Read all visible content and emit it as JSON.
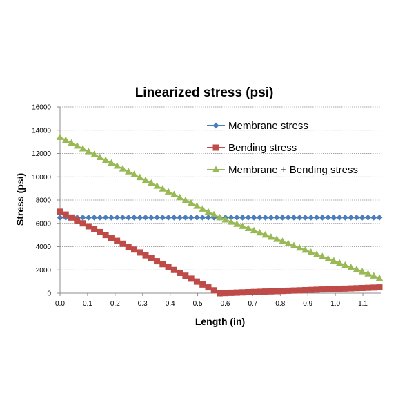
{
  "chart_data": {
    "type": "line",
    "title": "Linearized stress (psi)",
    "xlabel": "Length (in)",
    "ylabel": "Stress (psi)",
    "xlim": [
      0,
      1.165
    ],
    "ylim": [
      0,
      16000
    ],
    "x_ticks": [
      "0.0",
      "0.1",
      "0.2",
      "0.3",
      "0.4",
      "0.5",
      "0.6",
      "0.7",
      "0.8",
      "0.9",
      "1.0",
      "1.1"
    ],
    "y_ticks": [
      "0",
      "2000",
      "4000",
      "6000",
      "8000",
      "10000",
      "12000",
      "14000",
      "16000"
    ],
    "grid": "horizontal",
    "legend_position": "top-right (inside plot)",
    "series": [
      {
        "name": "Membrane stress",
        "color": "#4a7ebb",
        "marker": "diamond",
        "points": [
          [
            0.0,
            6500
          ],
          [
            0.58,
            6500
          ],
          [
            1.16,
            6500
          ]
        ]
      },
      {
        "name": "Bending stress",
        "color": "#be4b48",
        "marker": "square",
        "points": [
          [
            0.0,
            7000
          ],
          [
            0.58,
            0
          ],
          [
            1.16,
            500
          ]
        ]
      },
      {
        "name": "Membrane + Bending stress",
        "color": "#98b954",
        "marker": "triangle",
        "points": [
          [
            0.0,
            13400
          ],
          [
            0.58,
            6500
          ],
          [
            1.16,
            1300
          ]
        ]
      }
    ]
  }
}
